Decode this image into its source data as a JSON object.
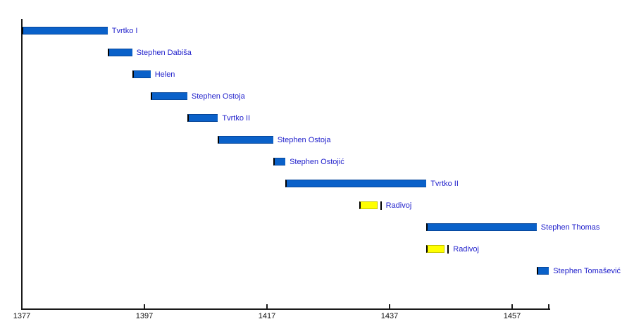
{
  "palette": {
    "bar_blue": "#0a61c9",
    "bar_yellow": "#ffff00",
    "bar_edge": "#000000",
    "label_text": "#2222cc",
    "axis_color": "#1a1a1a",
    "tick_text": "#111111",
    "background": "#ffffff"
  },
  "chart_data": {
    "type": "bar",
    "subtype": "horizontal-gantt-timeline",
    "title": "",
    "xlabel": "",
    "ylabel": "",
    "legend": "none",
    "grid": false,
    "x_axis": {
      "range": [
        1377,
        1463
      ],
      "ticks": [
        {
          "year": 1377,
          "label": "1377"
        },
        {
          "year": 1397,
          "label": "1397"
        },
        {
          "year": 1417,
          "label": "1417"
        },
        {
          "year": 1437,
          "label": "1437"
        },
        {
          "year": 1457,
          "label": "1457"
        },
        {
          "year": 1463,
          "label": ""
        }
      ]
    },
    "bars": [
      {
        "label": "Tvrtko I",
        "start": 1377,
        "end": 1391,
        "color": "blue",
        "end_marker": false
      },
      {
        "label": "Stephen Dabiša",
        "start": 1391,
        "end": 1395,
        "color": "blue",
        "end_marker": false
      },
      {
        "label": "Helen",
        "start": 1395,
        "end": 1398,
        "color": "blue",
        "end_marker": false
      },
      {
        "label": "Stephen Ostoja",
        "start": 1398,
        "end": 1404,
        "color": "blue",
        "end_marker": false
      },
      {
        "label": "Tvrtko II",
        "start": 1404,
        "end": 1409,
        "color": "blue",
        "end_marker": false
      },
      {
        "label": "Stephen Ostoja",
        "start": 1409,
        "end": 1418,
        "color": "blue",
        "end_marker": false
      },
      {
        "label": "Stephen Ostojić",
        "start": 1418,
        "end": 1420,
        "color": "blue",
        "end_marker": false
      },
      {
        "label": "Tvrtko II",
        "start": 1420,
        "end": 1443,
        "color": "blue",
        "end_marker": false
      },
      {
        "label": "Radivoj",
        "start": 1432,
        "end": 1435,
        "color": "yellow",
        "end_marker": true
      },
      {
        "label": "Stephen Thomas",
        "start": 1443,
        "end": 1461,
        "color": "blue",
        "end_marker": false
      },
      {
        "label": "Radivoj",
        "start": 1443,
        "end": 1446,
        "color": "yellow",
        "end_marker": true
      },
      {
        "label": "Stephen Tomašević",
        "start": 1461,
        "end": 1463,
        "color": "blue",
        "end_marker": false
      }
    ]
  }
}
